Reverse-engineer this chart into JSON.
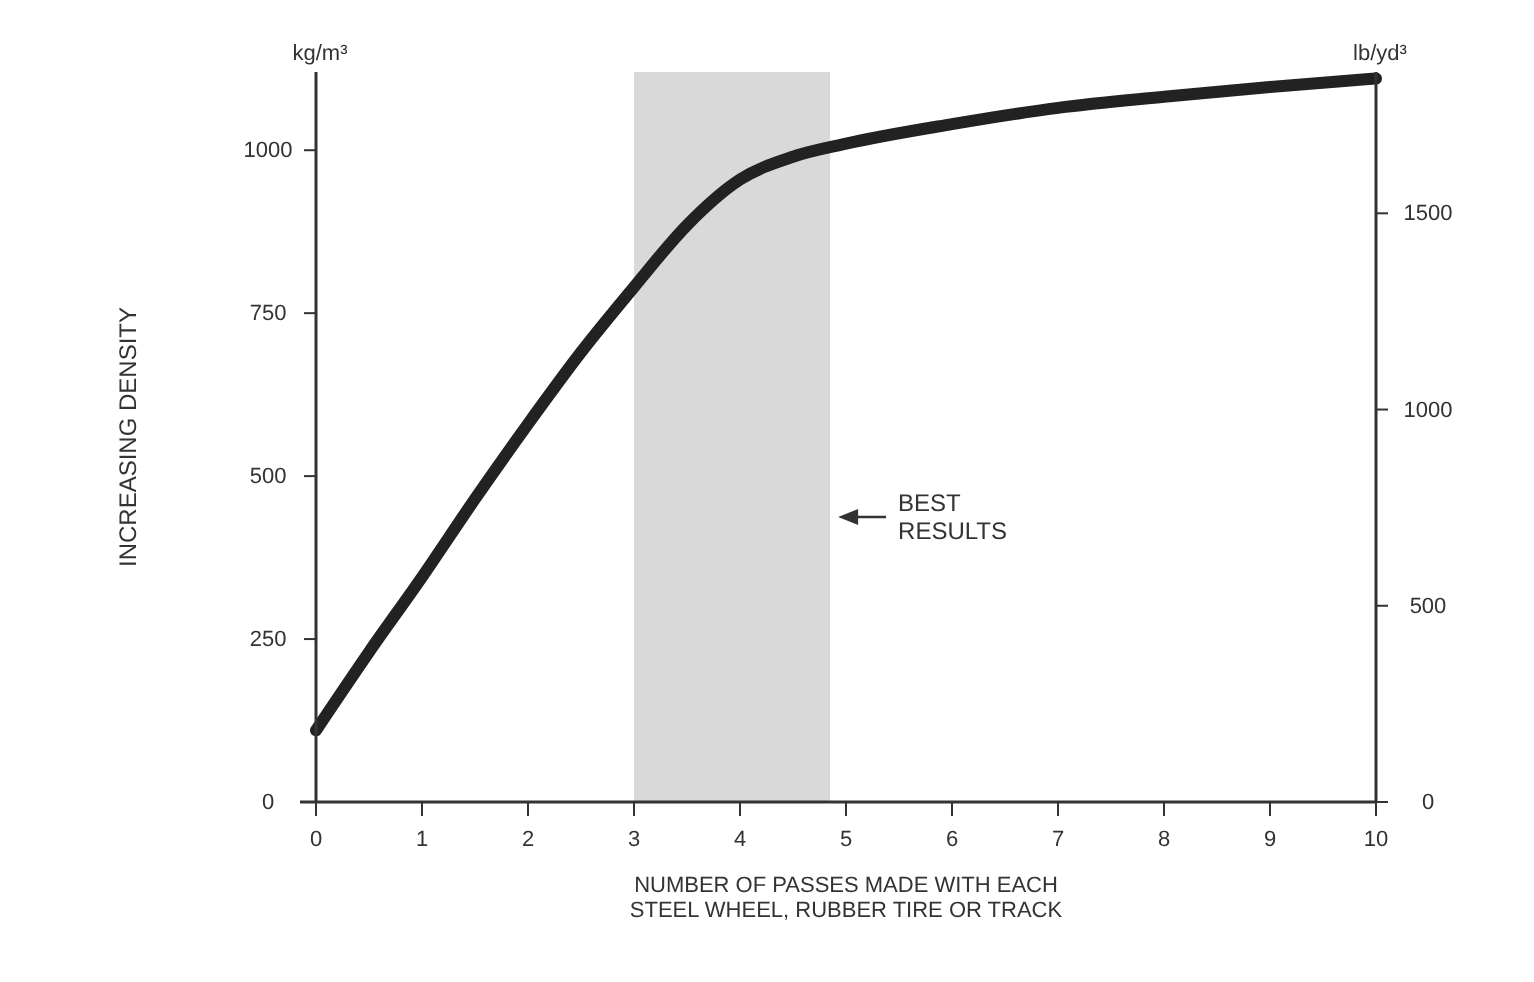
{
  "chart_data": {
    "type": "line",
    "xlabel": "NUMBER OF PASSES MADE WITH EACH\nSTEEL WHEEL, RUBBER TIRE OR TRACK",
    "ylabel": "kg/m³",
    "y2label": "lb/yd³",
    "x": [
      0,
      0.5,
      1,
      1.5,
      2,
      2.5,
      3,
      3.5,
      4,
      4.5,
      5,
      6,
      7,
      8,
      9,
      10
    ],
    "series": [
      {
        "color": "#222222",
        "values": [
          110,
          230,
          345,
          465,
          580,
          690,
          790,
          885,
          955,
          990,
          1010,
          1040,
          1065,
          1082,
          1097,
          1110
        ]
      }
    ],
    "xlim": [
      0,
      10
    ],
    "xticks": [
      0,
      1,
      2,
      3,
      4,
      5,
      6,
      7,
      8,
      9,
      10
    ],
    "ylim": [
      0,
      1120
    ],
    "yticks": [
      0,
      250,
      500,
      750,
      1000
    ],
    "y2lim": [
      0,
      1860
    ],
    "y2ticks": [
      0,
      500,
      1000,
      1500
    ],
    "bands": [
      {
        "axis": "x",
        "from": 3,
        "to": 4.85,
        "label": "BEST\nRESULTS",
        "color": "#d9d9d9"
      }
    ],
    "annotations": [
      "INCREASING DENSITY"
    ],
    "grid": false,
    "marker": "none",
    "line_style": "solid"
  }
}
